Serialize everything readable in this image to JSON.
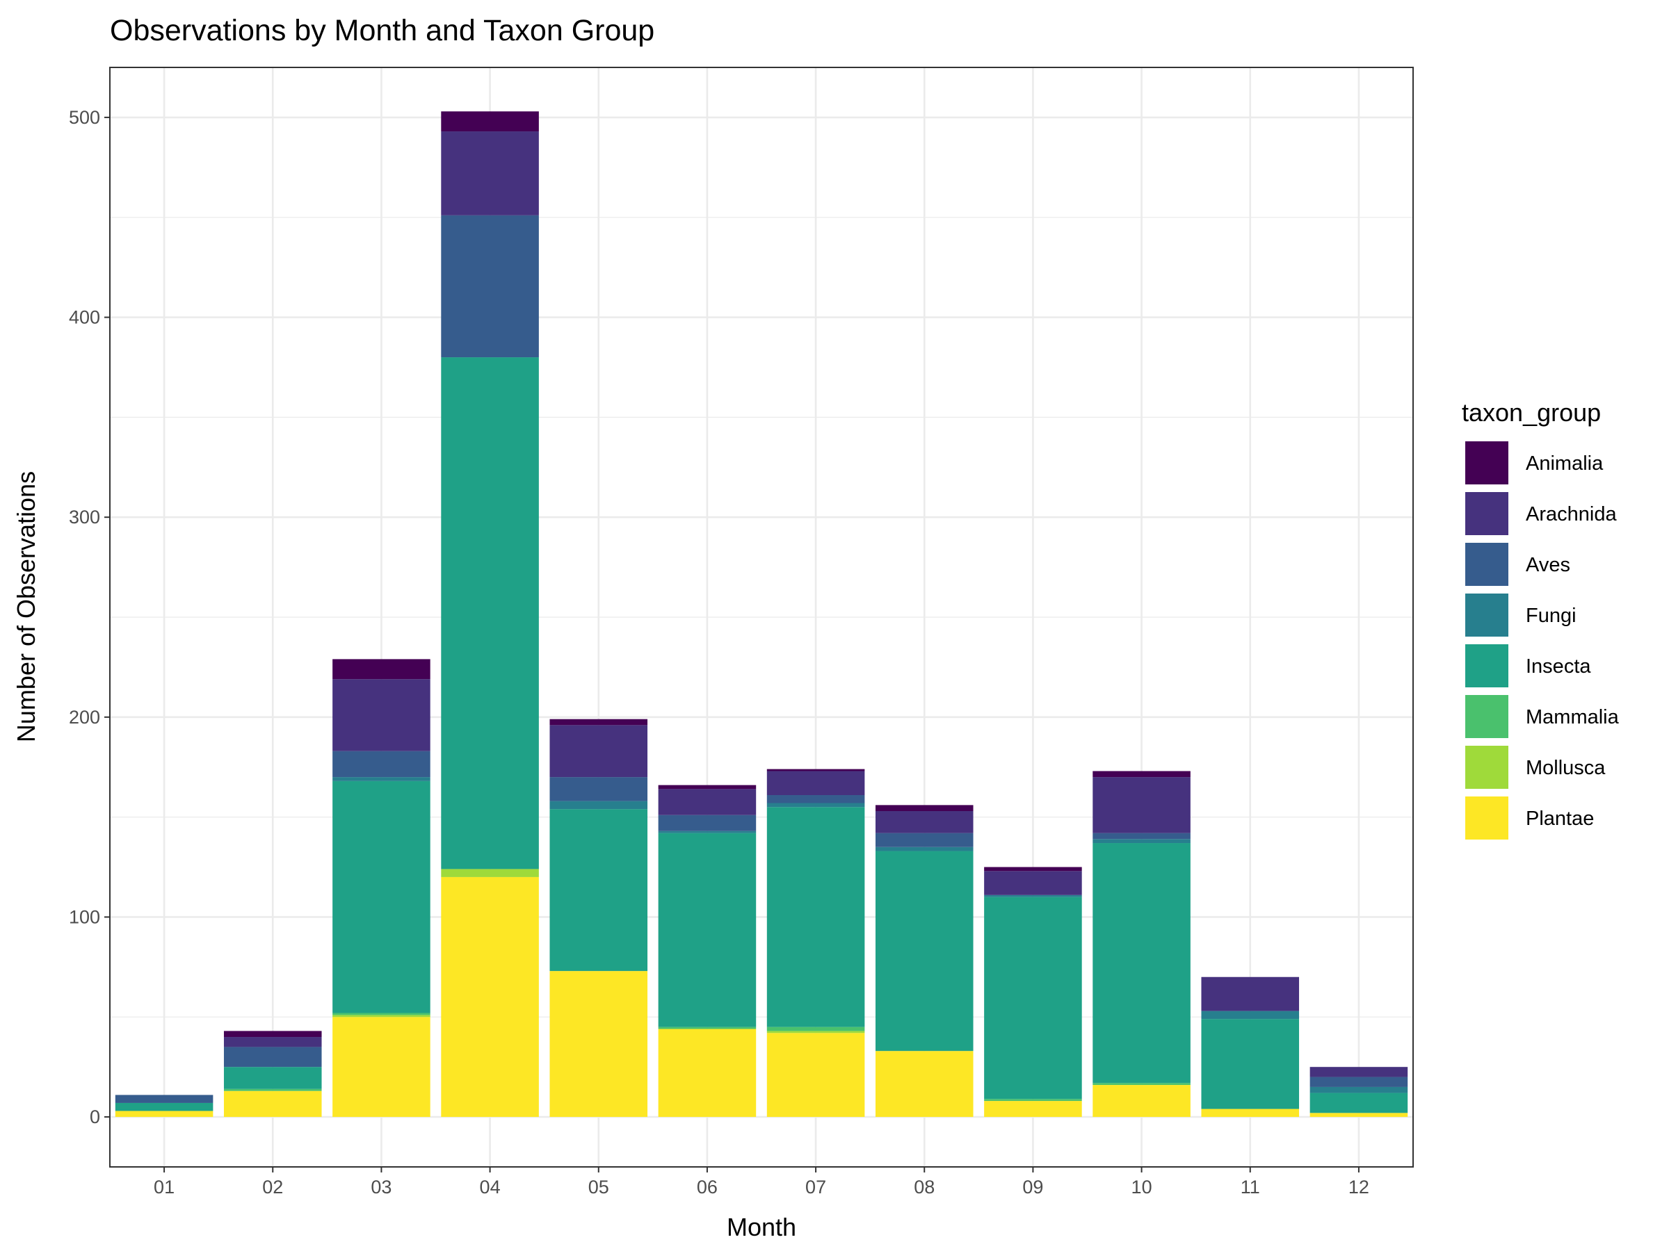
{
  "chart_data": {
    "type": "bar",
    "stacked": true,
    "title": "Observations by Month and Taxon Group",
    "xlabel": "Month",
    "ylabel": "Number of Observations",
    "ylim": [
      -25,
      525
    ],
    "yticks": [
      0,
      100,
      200,
      300,
      400,
      500
    ],
    "grid": true,
    "legend_title": "taxon_group",
    "legend_position": "right",
    "categories": [
      "01",
      "02",
      "03",
      "04",
      "05",
      "06",
      "07",
      "08",
      "09",
      "10",
      "11",
      "12"
    ],
    "series": [
      {
        "name": "Plantae",
        "color": "#FDE725",
        "values": [
          3,
          13,
          50,
          120,
          73,
          44,
          42,
          33,
          8,
          16,
          4,
          2
        ]
      },
      {
        "name": "Mollusca",
        "color": "#9FDA3A",
        "values": [
          0,
          0,
          1,
          4,
          0,
          0,
          1,
          0,
          0,
          0,
          0,
          0
        ]
      },
      {
        "name": "Mammalia",
        "color": "#4AC16D",
        "values": [
          0,
          1,
          1,
          0,
          0,
          1,
          2,
          0,
          1,
          1,
          0,
          0
        ]
      },
      {
        "name": "Insecta",
        "color": "#1FA187",
        "values": [
          4,
          11,
          116,
          256,
          81,
          97,
          110,
          100,
          101,
          120,
          45,
          10
        ]
      },
      {
        "name": "Fungi",
        "color": "#277F8E",
        "values": [
          0,
          0,
          2,
          0,
          4,
          1,
          2,
          2,
          1,
          2,
          4,
          3
        ]
      },
      {
        "name": "Aves",
        "color": "#365C8D",
        "values": [
          4,
          10,
          13,
          71,
          12,
          8,
          4,
          7,
          0,
          3,
          0,
          5
        ]
      },
      {
        "name": "Arachnida",
        "color": "#46327E",
        "values": [
          0,
          5,
          36,
          42,
          26,
          13,
          12,
          11,
          12,
          28,
          17,
          5
        ]
      },
      {
        "name": "Animalia",
        "color": "#440154",
        "values": [
          0,
          3,
          10,
          10,
          3,
          2,
          1,
          3,
          2,
          3,
          0,
          0
        ]
      }
    ]
  }
}
